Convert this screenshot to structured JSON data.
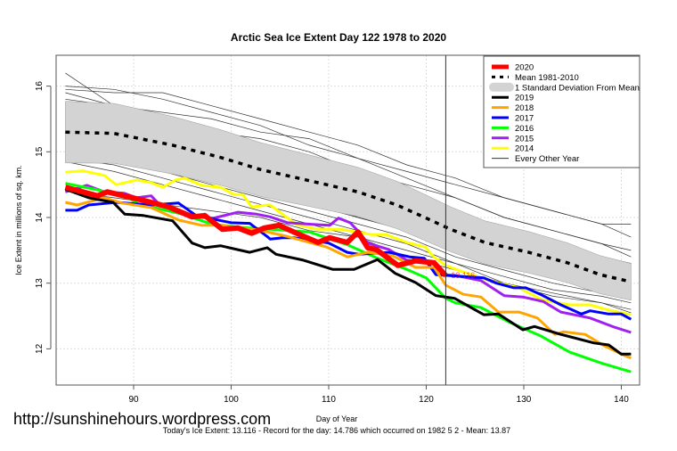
{
  "chart_data": {
    "type": "line",
    "title": "Arctic Sea Ice Extent Day 122 1978 to 2020",
    "xlabel": "Day of Year",
    "ylabel": "Ice Extent in millions of sq. km.",
    "xlim": [
      82,
      142
    ],
    "ylim": [
      11.45,
      16.45
    ],
    "xticks": [
      90,
      100,
      110,
      120,
      130,
      140
    ],
    "yticks": [
      12,
      13,
      14,
      15,
      16
    ],
    "grid": true,
    "current_day_marker": 122,
    "current_value_label": "13.116",
    "legend_position": "top-right",
    "legend": [
      {
        "label": "2020",
        "color": "#ff0000",
        "kind": "thick"
      },
      {
        "label": "Mean 1981-2010",
        "color": "#000000",
        "kind": "dashed"
      },
      {
        "label": "1 Standard Deviation From Mean",
        "color": "#d3d3d3",
        "kind": "band"
      },
      {
        "label": "2019",
        "color": "#000000",
        "kind": "line"
      },
      {
        "label": "2018",
        "color": "#ffa500",
        "kind": "line"
      },
      {
        "label": "2017",
        "color": "#0000ff",
        "kind": "line"
      },
      {
        "label": "2016",
        "color": "#00ff00",
        "kind": "line"
      },
      {
        "label": "2015",
        "color": "#a020f0",
        "kind": "line"
      },
      {
        "label": "2014",
        "color": "#ffff00",
        "kind": "line"
      },
      {
        "label": "Every Other Year",
        "color": "#333333",
        "kind": "thin"
      }
    ],
    "mean": [
      [
        83,
        15.3
      ],
      [
        88,
        15.28
      ],
      [
        94,
        15.1
      ],
      [
        99,
        14.91
      ],
      [
        103,
        14.73
      ],
      [
        108,
        14.56
      ],
      [
        113,
        14.39
      ],
      [
        117,
        14.19
      ],
      [
        120,
        13.99
      ],
      [
        122.5,
        13.82
      ],
      [
        126,
        13.62
      ],
      [
        130.5,
        13.47
      ],
      [
        134.5,
        13.31
      ],
      [
        137.8,
        13.13
      ],
      [
        141,
        13.02
      ]
    ],
    "std_dev": [
      [
        83,
        0.47
      ],
      [
        100,
        0.42
      ],
      [
        120,
        0.35
      ],
      [
        141,
        0.28
      ]
    ],
    "other_years_days": [
      83,
      88,
      93,
      98,
      103,
      108,
      113,
      118,
      123,
      128,
      133,
      138,
      141
    ],
    "other_years": [
      [
        16.2,
        15.7,
        15.4,
        15.2,
        15.0,
        14.8,
        14.6,
        14.3,
        14.0,
        13.8,
        13.6,
        13.4,
        13.3
      ],
      [
        16.0,
        15.95,
        15.8,
        15.6,
        15.4,
        15.1,
        14.9,
        14.7,
        14.5,
        14.3,
        14.1,
        13.9,
        13.9
      ],
      [
        15.95,
        15.9,
        15.9,
        15.7,
        15.5,
        15.3,
        15.1,
        14.8,
        14.6,
        14.3,
        14.1,
        13.9,
        13.7
      ],
      [
        15.8,
        15.7,
        15.6,
        15.5,
        15.3,
        15.2,
        14.9,
        14.6,
        14.3,
        14.0,
        13.8,
        13.6,
        13.5
      ],
      [
        15.7,
        15.6,
        15.4,
        15.3,
        15.1,
        14.8,
        14.6,
        14.3,
        14.0,
        13.8,
        13.6,
        13.4,
        13.3
      ],
      [
        15.6,
        15.5,
        15.2,
        15.0,
        14.9,
        14.7,
        14.5,
        14.2,
        13.9,
        13.7,
        13.5,
        13.3,
        13.2
      ],
      [
        15.5,
        15.4,
        15.3,
        15.1,
        14.8,
        14.6,
        14.3,
        14.1,
        13.8,
        13.6,
        13.4,
        13.2,
        13.1
      ],
      [
        15.45,
        15.3,
        15.1,
        14.9,
        14.7,
        14.5,
        14.3,
        14.0,
        13.8,
        13.6,
        13.3,
        13.2,
        13.0
      ],
      [
        15.4,
        15.2,
        15.0,
        14.8,
        14.6,
        14.4,
        14.1,
        13.9,
        13.7,
        13.5,
        13.3,
        13.1,
        13.0
      ],
      [
        15.3,
        15.2,
        15.1,
        14.9,
        14.5,
        14.3,
        14.0,
        13.8,
        13.6,
        13.4,
        13.2,
        13.0,
        12.9
      ],
      [
        15.2,
        15.0,
        14.9,
        14.7,
        14.5,
        14.3,
        14.1,
        13.9,
        13.7,
        13.4,
        13.2,
        13.0,
        12.9
      ],
      [
        15.1,
        15.0,
        14.8,
        14.6,
        14.4,
        14.2,
        14.0,
        13.8,
        13.5,
        13.3,
        13.1,
        12.9,
        12.8
      ],
      [
        15.0,
        14.9,
        14.7,
        14.5,
        14.3,
        14.1,
        13.9,
        13.7,
        13.4,
        13.2,
        13.0,
        12.85,
        12.75
      ],
      [
        14.9,
        14.8,
        14.6,
        14.4,
        14.2,
        14.0,
        13.8,
        13.6,
        13.3,
        13.1,
        12.9,
        12.8,
        12.7
      ],
      [
        14.85,
        14.7,
        14.5,
        14.3,
        14.1,
        13.9,
        13.7,
        13.5,
        13.3,
        13.0,
        12.85,
        12.7,
        12.6
      ],
      [
        14.4,
        14.3,
        14.2,
        14.1,
        14.0,
        13.8,
        13.7,
        13.4,
        13.2,
        13.0,
        12.8,
        12.7,
        12.55
      ],
      [
        15.6,
        15.5,
        15.35,
        15.1,
        14.9,
        14.6,
        14.4,
        14.2,
        13.95,
        13.7,
        13.5,
        13.3,
        13.2
      ],
      [
        15.9,
        15.7,
        15.5,
        15.3,
        15.2,
        15.0,
        14.7,
        14.5,
        14.3,
        14.0,
        13.8,
        13.6,
        13.4
      ]
    ],
    "series": [
      {
        "name": "2014",
        "color": "#ffff00",
        "width": 3,
        "points": [
          [
            83,
            14.69
          ],
          [
            84.8,
            14.71
          ],
          [
            87,
            14.64
          ],
          [
            88.2,
            14.5
          ],
          [
            90.3,
            14.57
          ],
          [
            91.8,
            14.53
          ],
          [
            93,
            14.46
          ],
          [
            94.3,
            14.57
          ],
          [
            95.2,
            14.6
          ],
          [
            97,
            14.49
          ],
          [
            98.9,
            14.46
          ],
          [
            100.3,
            14.35
          ],
          [
            101.2,
            14.35
          ],
          [
            102.1,
            14.16
          ],
          [
            103.7,
            14.19
          ],
          [
            104,
            14.19
          ],
          [
            106.7,
            13.89
          ],
          [
            108.9,
            13.82
          ],
          [
            111.3,
            13.82
          ],
          [
            112.8,
            13.78
          ],
          [
            114.4,
            13.74
          ],
          [
            115.9,
            13.74
          ],
          [
            118,
            13.62
          ],
          [
            119.9,
            13.55
          ],
          [
            120.8,
            13.4
          ],
          [
            122,
            13.27
          ],
          [
            123.8,
            13.17
          ],
          [
            125.6,
            13.08
          ],
          [
            127.2,
            13.01
          ],
          [
            129.5,
            12.93
          ],
          [
            132,
            12.74
          ],
          [
            134.7,
            12.67
          ],
          [
            136.8,
            12.67
          ],
          [
            138.7,
            12.59
          ],
          [
            141,
            12.52
          ]
        ]
      },
      {
        "name": "2015",
        "color": "#a020f0",
        "width": 3,
        "points": [
          [
            83,
            14.39
          ],
          [
            85.2,
            14.49
          ],
          [
            87,
            14.39
          ],
          [
            89,
            14.37
          ],
          [
            90.3,
            14.3
          ],
          [
            91.8,
            14.33
          ],
          [
            92.5,
            14.22
          ],
          [
            96,
            14.01
          ],
          [
            98.2,
            13.99
          ],
          [
            100.7,
            14.08
          ],
          [
            102.6,
            14.05
          ],
          [
            104,
            14.01
          ],
          [
            105.8,
            13.92
          ],
          [
            108.9,
            13.89
          ],
          [
            110.1,
            13.88
          ],
          [
            111,
            13.99
          ],
          [
            112.2,
            13.92
          ],
          [
            113.1,
            13.78
          ],
          [
            114,
            13.61
          ],
          [
            116.2,
            13.51
          ],
          [
            118,
            13.35
          ],
          [
            120.1,
            13.31
          ],
          [
            121,
            13.13
          ],
          [
            122.9,
            13.12
          ],
          [
            125.6,
            13.04
          ],
          [
            128,
            12.81
          ],
          [
            129.9,
            12.79
          ],
          [
            132,
            12.72
          ],
          [
            133.8,
            12.56
          ],
          [
            136.8,
            12.47
          ],
          [
            139.3,
            12.33
          ],
          [
            141,
            12.25
          ]
        ]
      },
      {
        "name": "2016",
        "color": "#00ff00",
        "width": 3,
        "points": [
          [
            83,
            14.52
          ],
          [
            86.3,
            14.42
          ],
          [
            89.7,
            14.28
          ],
          [
            90.6,
            14.19
          ],
          [
            91.8,
            14.16
          ],
          [
            95,
            14.05
          ],
          [
            98,
            13.9
          ],
          [
            101,
            13.85
          ],
          [
            104,
            13.82
          ],
          [
            108,
            13.78
          ],
          [
            112,
            13.58
          ],
          [
            115,
            13.38
          ],
          [
            118,
            13.21
          ],
          [
            120,
            13.08
          ],
          [
            122,
            12.77
          ],
          [
            123,
            12.7
          ],
          [
            125.6,
            12.63
          ],
          [
            128.6,
            12.4
          ],
          [
            131.7,
            12.2
          ],
          [
            134.7,
            11.95
          ],
          [
            138,
            11.78
          ],
          [
            141,
            11.65
          ]
        ]
      },
      {
        "name": "2017",
        "color": "#0000ff",
        "width": 3,
        "points": [
          [
            83,
            14.11
          ],
          [
            84.2,
            14.11
          ],
          [
            85.4,
            14.19
          ],
          [
            88.2,
            14.23
          ],
          [
            91.8,
            14.19
          ],
          [
            94.6,
            14.22
          ],
          [
            96.4,
            14.03
          ],
          [
            100,
            13.92
          ],
          [
            101.9,
            13.91
          ],
          [
            103.7,
            13.71
          ],
          [
            104,
            13.67
          ],
          [
            105.3,
            13.69
          ],
          [
            106.5,
            13.69
          ],
          [
            110,
            13.61
          ],
          [
            111.9,
            13.47
          ],
          [
            113.1,
            13.44
          ],
          [
            116.2,
            13.47
          ],
          [
            118.3,
            13.4
          ],
          [
            119.8,
            13.38
          ],
          [
            121,
            13.13
          ],
          [
            123.8,
            13.1
          ],
          [
            125.9,
            13.08
          ],
          [
            127.2,
            13.0
          ],
          [
            129,
            12.93
          ],
          [
            130.2,
            12.93
          ],
          [
            131.7,
            12.83
          ],
          [
            133.8,
            12.67
          ],
          [
            135.9,
            12.53
          ],
          [
            136.8,
            12.58
          ],
          [
            138.7,
            12.53
          ],
          [
            140,
            12.53
          ],
          [
            141,
            12.45
          ]
        ]
      },
      {
        "name": "2018",
        "color": "#ffa500",
        "width": 3,
        "points": [
          [
            83,
            14.23
          ],
          [
            84.2,
            14.19
          ],
          [
            87,
            14.3
          ],
          [
            88.8,
            14.22
          ],
          [
            91.8,
            14.15
          ],
          [
            94.6,
            13.96
          ],
          [
            97,
            13.88
          ],
          [
            98.9,
            13.88
          ],
          [
            102.8,
            13.81
          ],
          [
            105.8,
            13.71
          ],
          [
            109.8,
            13.55
          ],
          [
            111.9,
            13.4
          ],
          [
            114,
            13.47
          ],
          [
            116.5,
            13.42
          ],
          [
            118.9,
            13.24
          ],
          [
            120.8,
            13.24
          ],
          [
            122,
            12.97
          ],
          [
            123.8,
            12.83
          ],
          [
            125.6,
            12.79
          ],
          [
            127.4,
            12.56
          ],
          [
            129.5,
            12.56
          ],
          [
            131.4,
            12.47
          ],
          [
            133.2,
            12.22
          ],
          [
            134.1,
            12.26
          ],
          [
            136.3,
            12.22
          ],
          [
            138.1,
            12.06
          ],
          [
            140,
            11.92
          ],
          [
            141,
            11.86
          ]
        ]
      },
      {
        "name": "2019",
        "color": "#000000",
        "width": 3,
        "points": [
          [
            83,
            14.43
          ],
          [
            85.4,
            14.3
          ],
          [
            87.9,
            14.23
          ],
          [
            89.1,
            14.05
          ],
          [
            91,
            14.03
          ],
          [
            94,
            13.95
          ],
          [
            96,
            13.61
          ],
          [
            97.3,
            13.54
          ],
          [
            98.9,
            13.57
          ],
          [
            101.9,
            13.47
          ],
          [
            103.7,
            13.54
          ],
          [
            104.6,
            13.44
          ],
          [
            107.4,
            13.35
          ],
          [
            110.4,
            13.21
          ],
          [
            112.6,
            13.21
          ],
          [
            115,
            13.36
          ],
          [
            116.8,
            13.15
          ],
          [
            118.9,
            13.01
          ],
          [
            121,
            12.81
          ],
          [
            122.9,
            12.77
          ],
          [
            125.9,
            12.52
          ],
          [
            127.4,
            12.53
          ],
          [
            129.9,
            12.29
          ],
          [
            131.1,
            12.34
          ],
          [
            133.8,
            12.22
          ],
          [
            137.2,
            12.09
          ],
          [
            138.7,
            12.06
          ],
          [
            140,
            11.92
          ],
          [
            141,
            11.92
          ]
        ]
      },
      {
        "name": "2020",
        "color": "#ff0000",
        "width": 6,
        "points": [
          [
            83,
            14.46
          ],
          [
            86.3,
            14.33
          ],
          [
            87.3,
            14.39
          ],
          [
            91,
            14.26
          ],
          [
            93.6,
            14.16
          ],
          [
            96,
            14.01
          ],
          [
            97.3,
            14.03
          ],
          [
            99.1,
            13.82
          ],
          [
            100.7,
            13.84
          ],
          [
            102.1,
            13.76
          ],
          [
            103.4,
            13.84
          ],
          [
            104.9,
            13.88
          ],
          [
            106.7,
            13.76
          ],
          [
            108.9,
            13.62
          ],
          [
            110.1,
            13.69
          ],
          [
            111.9,
            13.62
          ],
          [
            113,
            13.78
          ],
          [
            114,
            13.54
          ],
          [
            114.9,
            13.51
          ],
          [
            117.1,
            13.27
          ],
          [
            118.9,
            13.34
          ],
          [
            120.8,
            13.31
          ],
          [
            122,
            13.116
          ]
        ]
      }
    ]
  },
  "watermark": "http://sunshinehours.wordpress.com",
  "footer": "Today's Ice Extent: 13.116  - Record for the day: 14.786 which occurred on 1982 5 2  - Mean: 13.87"
}
